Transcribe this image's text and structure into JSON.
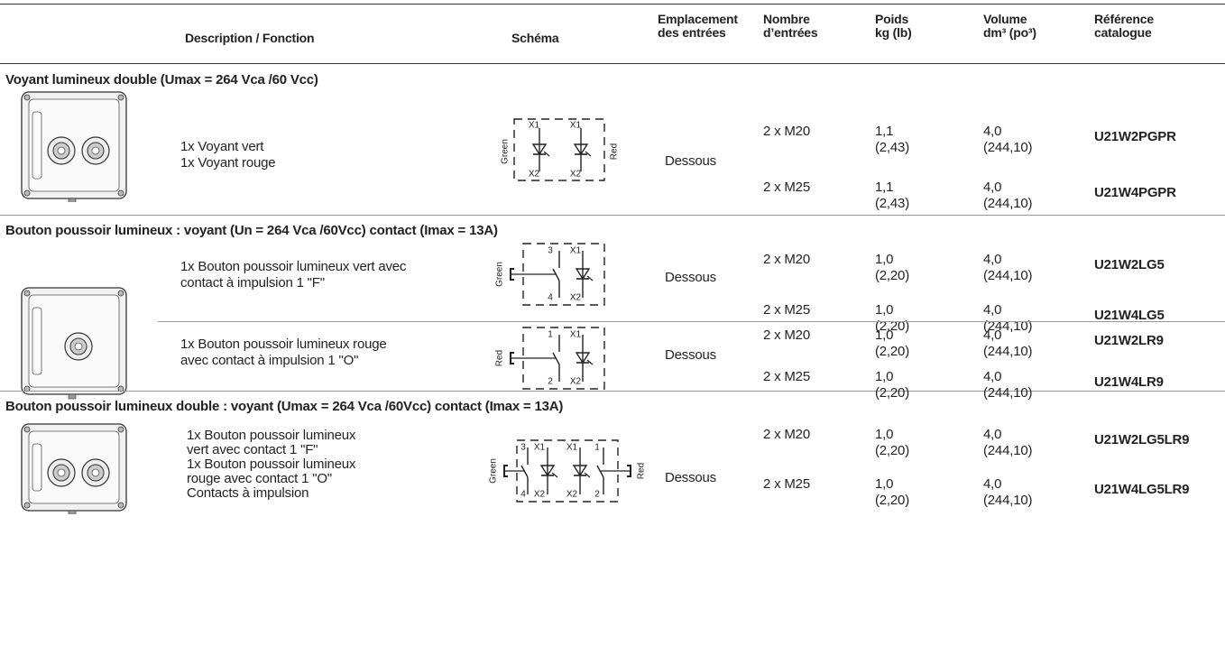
{
  "header": {
    "columns": [
      [
        "Description / Fonction"
      ],
      [
        "Schéma"
      ],
      [
        "Emplacement",
        "des entrées"
      ],
      [
        "Nombre",
        "d’entrées"
      ],
      [
        "Poids",
        "kg (lb)"
      ],
      [
        "Volume",
        "dm³ (po³)"
      ],
      [
        "Référence",
        "catalogue"
      ]
    ]
  },
  "sections": [
    {
      "title": "Voyant lumineux double (Umax = 264 Vca /60 Vcc)",
      "groups": [
        {
          "description": [
            "1x Voyant vert",
            "1x Voyant rouge"
          ],
          "schema": [
            "Green",
            "X1",
            "X2",
            "X1",
            "X2",
            "Red"
          ],
          "location": "Dessous",
          "rows": [
            {
              "entries": "2 x M20",
              "weight": [
                "1,1",
                "(2,43)"
              ],
              "volume": [
                "4,0",
                "(244,10)"
              ],
              "reference": "U21W2PGPR"
            },
            {
              "entries": "2 x M25",
              "weight": [
                "1,1",
                "(2,43)"
              ],
              "volume": [
                "4,0",
                "(244,10)"
              ],
              "reference": "U21W4PGPR"
            }
          ]
        }
      ]
    },
    {
      "title": "Bouton poussoir lumineux : voyant (Un = 264 Vca /60Vcc) contact (Imax = 13A)",
      "groups": [
        {
          "description": [
            "1x Bouton poussoir lumineux vert avec",
            "contact à impulsion 1 \"F\""
          ],
          "schema": [
            "Green",
            "3",
            "4",
            "X1",
            "X2"
          ],
          "location": "Dessous",
          "rows": [
            {
              "entries": "2 x M20",
              "weight": [
                "1,0",
                "(2,20)"
              ],
              "volume": [
                "4,0",
                "(244,10)"
              ],
              "reference": "U21W2LG5"
            },
            {
              "entries": "2 x M25",
              "weight": [
                "1,0",
                "(2,20)"
              ],
              "volume": [
                "4,0",
                "(244,10)"
              ],
              "reference": "U21W4LG5"
            }
          ]
        },
        {
          "description": [
            "1x Bouton poussoir lumineux rouge",
            "avec contact à impulsion 1 \"O\""
          ],
          "schema": [
            "Red",
            "1",
            "2",
            "X1",
            "X2"
          ],
          "location": "Dessous",
          "rows": [
            {
              "entries": "2 x M20",
              "weight": [
                "1,0",
                "(2,20)"
              ],
              "volume": [
                "4,0",
                "(244,10)"
              ],
              "reference": "U21W2LR9"
            },
            {
              "entries": "2 x M25",
              "weight": [
                "1,0",
                "(2,20)"
              ],
              "volume": [
                "4,0",
                "(244,10)"
              ],
              "reference": "U21W4LR9"
            }
          ]
        }
      ]
    },
    {
      "title": "Bouton poussoir lumineux double : voyant (Umax = 264 Vca /60Vcc) contact (Imax = 13A)",
      "groups": [
        {
          "description": [
            "1x Bouton poussoir lumineux",
            "vert avec contact 1 \"F\"",
            "1x Bouton poussoir lumineux",
            "rouge avec contact 1 \"O\"",
            "Contacts à impulsion"
          ],
          "schema": [
            "Green",
            "3",
            "4",
            "X1",
            "X2",
            "X1",
            "X2",
            "1",
            "2",
            "Red"
          ],
          "location": "Dessous",
          "rows": [
            {
              "entries": "2 x M20",
              "weight": [
                "1,0",
                "(2,20)"
              ],
              "volume": [
                "4,0",
                "(244,10)"
              ],
              "reference": "U21W2LG5LR9"
            },
            {
              "entries": "2 x M25",
              "weight": [
                "1,0",
                "(2,20)"
              ],
              "volume": [
                "4,0",
                "(244,10)"
              ],
              "reference": "U21W4LG5LR9"
            }
          ]
        }
      ]
    }
  ]
}
